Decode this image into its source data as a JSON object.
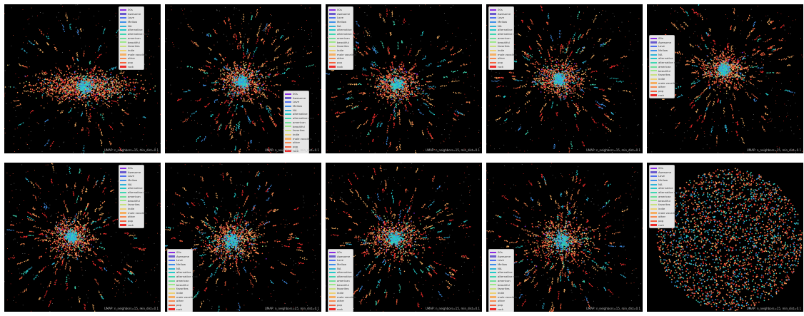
{
  "chart_data": {
    "type": "scatter",
    "caption": "UMAP: n_neighbors=15, min_dist=0.1",
    "legend": [
      {
        "label": "00s",
        "color": "#8a2be2"
      },
      {
        "label": "Awesome",
        "color": "#6a5acd"
      },
      {
        "label": "Love",
        "color": "#4f6ff0"
      },
      {
        "label": "Mellow",
        "color": "#3f8fe8"
      },
      {
        "label": "NA",
        "color": "#2fb5d8"
      },
      {
        "label": "alternative",
        "color": "#22c9c8"
      },
      {
        "label": "alternative rock",
        "color": "#3fd6b0"
      },
      {
        "label": "american",
        "color": "#6ee09a"
      },
      {
        "label": "beautiful",
        "color": "#9de88a"
      },
      {
        "label": "favorites",
        "color": "#c9e07e"
      },
      {
        "label": "indie",
        "color": "#ecd072"
      },
      {
        "label": "male vocalists",
        "color": "#f5ae62"
      },
      {
        "label": "other",
        "color": "#f78a50"
      },
      {
        "label": "pop",
        "color": "#f5603c"
      },
      {
        "label": "rock",
        "color": "#ee2a2a"
      }
    ],
    "panels": [
      {
        "id": 1,
        "legend_position": "top-right",
        "core_spread": "dense"
      },
      {
        "id": 2,
        "legend_position": "bottom-right",
        "core_spread": "medium"
      },
      {
        "id": 3,
        "legend_position": "top-left",
        "core_spread": "medium"
      },
      {
        "id": 4,
        "legend_position": "top-left",
        "core_spread": "medium"
      },
      {
        "id": 5,
        "legend_position": "middle-left",
        "core_spread": "medium"
      },
      {
        "id": 6,
        "legend_position": "top-right",
        "core_spread": "medium"
      },
      {
        "id": 7,
        "legend_position": "bottom-left",
        "core_spread": "wide"
      },
      {
        "id": 8,
        "legend_position": "bottom-left",
        "core_spread": "wide"
      },
      {
        "id": 9,
        "legend_position": "bottom-left",
        "core_spread": "wider"
      },
      {
        "id": 10,
        "legend_position": "top-left",
        "core_spread": "disk"
      }
    ]
  }
}
